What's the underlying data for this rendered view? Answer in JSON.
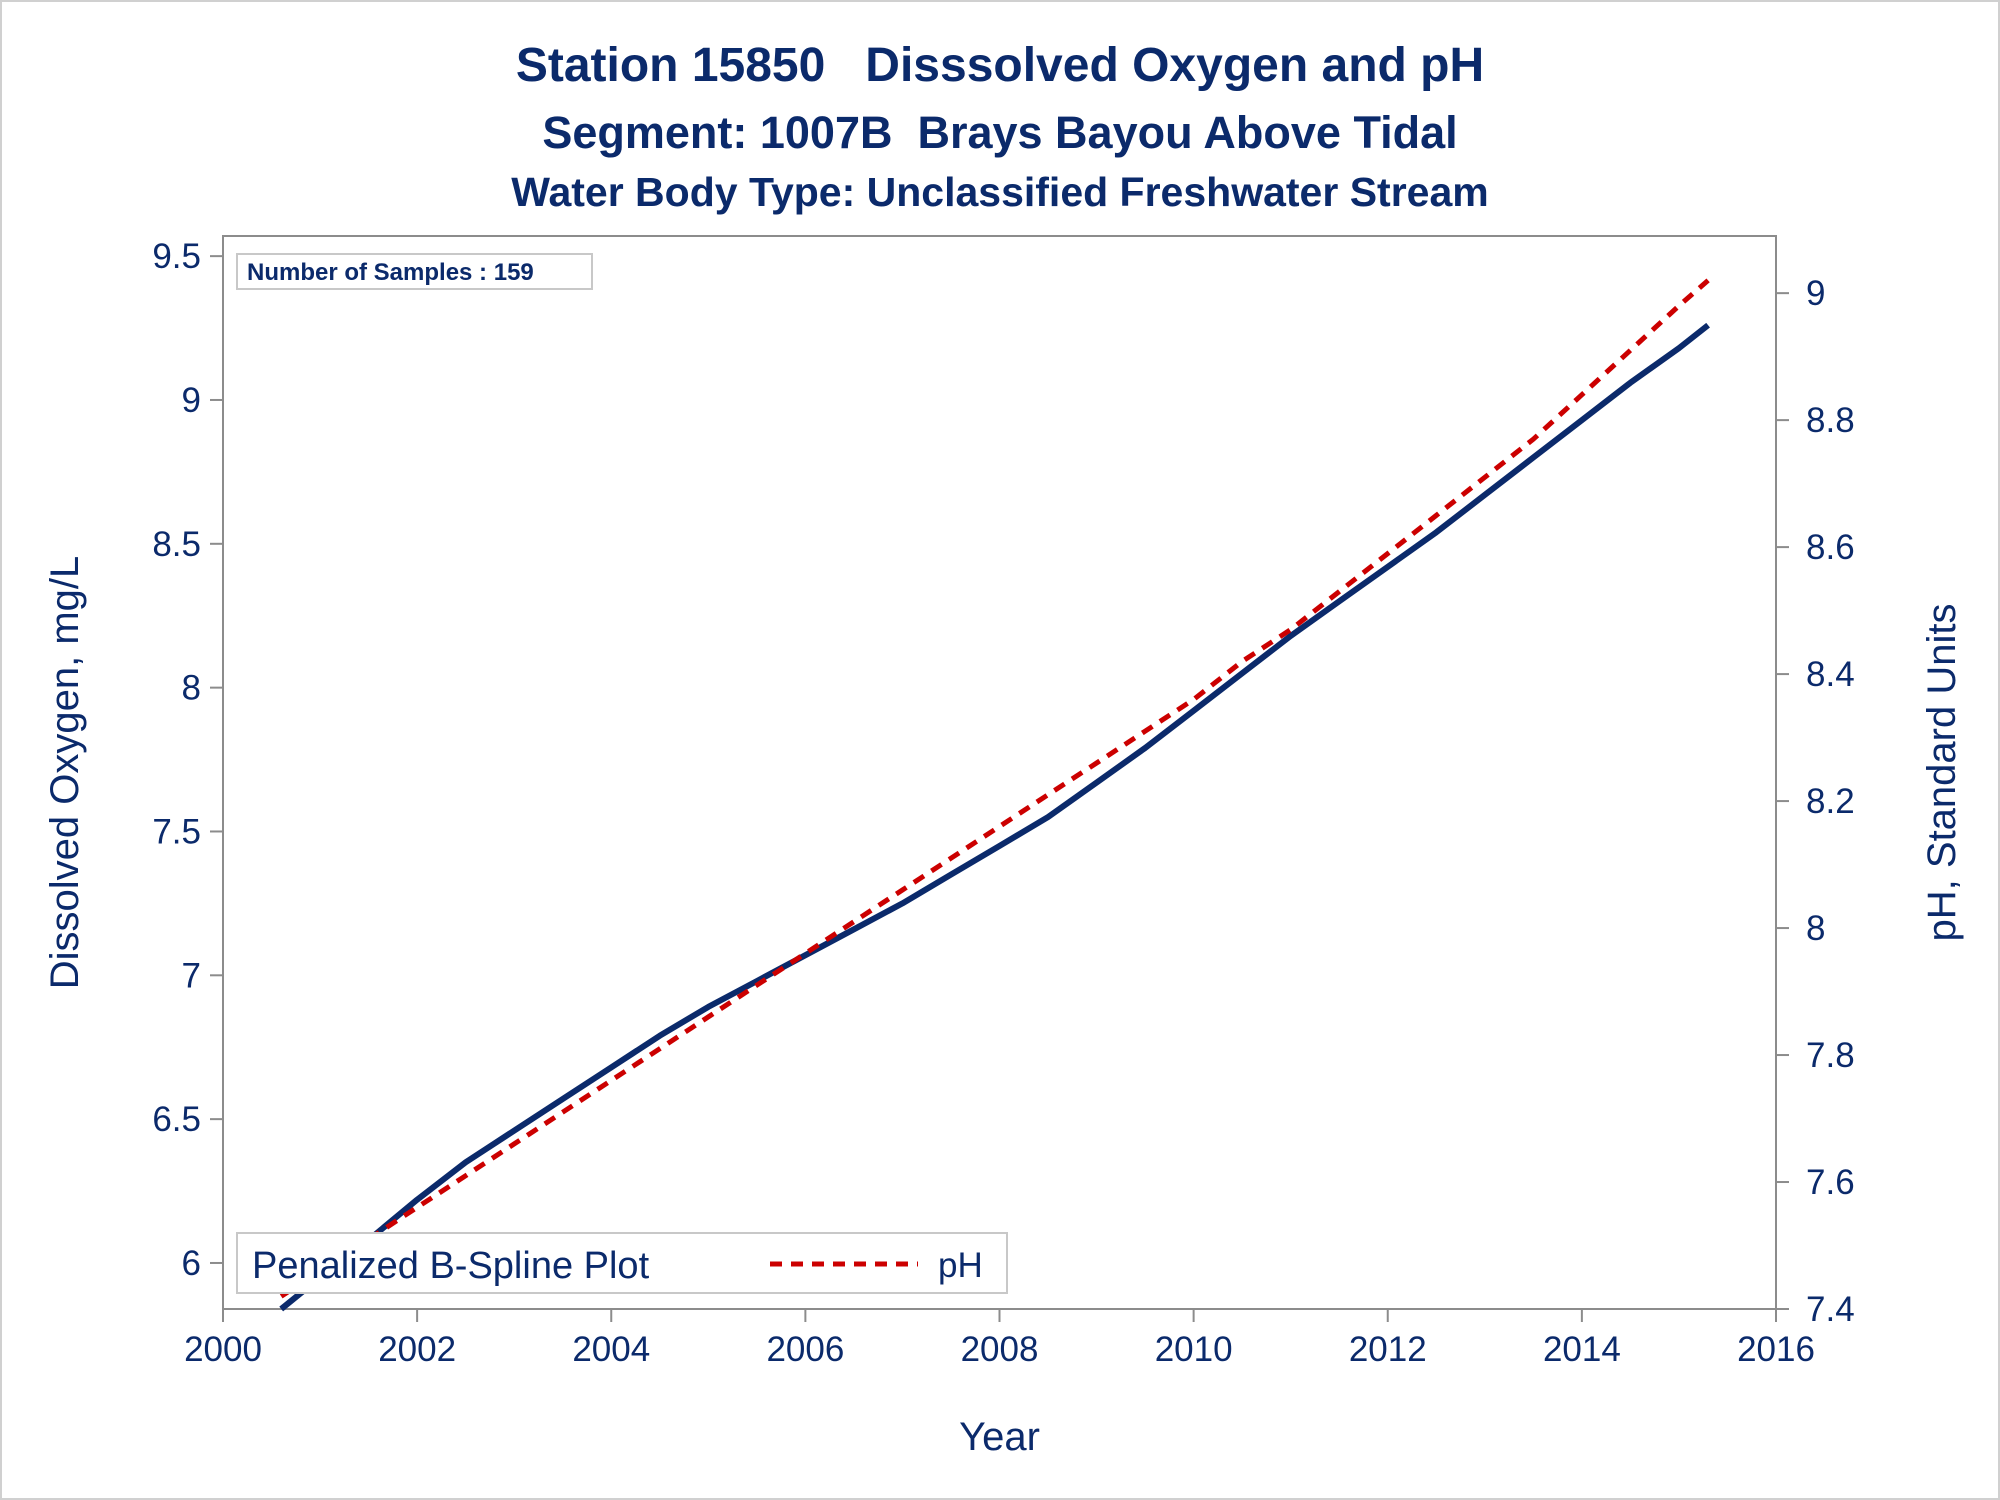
{
  "titles": {
    "line1": "Station 15850   Disssolved Oxygen and pH",
    "line2": "Segment: 1007B  Brays Bayou Above Tidal",
    "line3": "Water Body Type: Unclassified Freshwater Stream"
  },
  "inset_label": "Number of Samples : 159",
  "legend": {
    "label": "Penalized B-Spline Plot",
    "items": [
      "pH"
    ]
  },
  "colors": {
    "text": "#0b2a6b",
    "do_line": "#0b2a6b",
    "ph_line": "#cc0000",
    "axis": "#8c8c8c"
  },
  "chart_data": {
    "type": "line",
    "xlabel": "Year",
    "ylabel": "Dissolved Oxygen, mg/L",
    "y2label": "pH, Standard Units",
    "xlim": [
      2000,
      2016
    ],
    "ylim": [
      5.84,
      9.57
    ],
    "y2lim": [
      7.4,
      9.09
    ],
    "x_ticks": [
      2000,
      2002,
      2004,
      2006,
      2008,
      2010,
      2012,
      2014,
      2016
    ],
    "y_ticks": [
      6,
      6.5,
      7,
      7.5,
      8,
      8.5,
      9,
      9.5
    ],
    "y2_ticks": [
      7.4,
      7.6,
      7.8,
      8,
      8.2,
      8.4,
      8.6,
      8.8,
      9
    ],
    "grid": false,
    "legend_position": "bottom-left",
    "series": [
      {
        "axis": "left",
        "style": "solid",
        "x": [
          2000.6,
          2001.0,
          2001.5,
          2002.0,
          2002.5,
          2003.0,
          2003.5,
          2004.0,
          2004.5,
          2005.0,
          2005.5,
          2006.0,
          2006.5,
          2007.0,
          2007.5,
          2008.0,
          2008.5,
          2009.0,
          2009.5,
          2010.0,
          2010.5,
          2011.0,
          2011.5,
          2012.0,
          2012.5,
          2013.0,
          2013.5,
          2014.0,
          2014.5,
          2015.0,
          2015.3
        ],
        "values": [
          5.84,
          5.95,
          6.08,
          6.22,
          6.35,
          6.46,
          6.57,
          6.68,
          6.79,
          6.89,
          6.98,
          7.07,
          7.16,
          7.25,
          7.35,
          7.45,
          7.55,
          7.67,
          7.79,
          7.92,
          8.05,
          8.18,
          8.3,
          8.42,
          8.54,
          8.67,
          8.8,
          8.93,
          9.06,
          9.18,
          9.26
        ]
      },
      {
        "name": "pH",
        "axis": "right",
        "style": "dashed",
        "x": [
          2000.6,
          2001.0,
          2001.5,
          2002.0,
          2002.5,
          2003.0,
          2003.5,
          2004.0,
          2004.5,
          2005.0,
          2005.5,
          2006.0,
          2006.5,
          2007.0,
          2007.5,
          2008.0,
          2008.5,
          2009.0,
          2009.5,
          2010.0,
          2010.5,
          2011.0,
          2011.5,
          2012.0,
          2012.5,
          2013.0,
          2013.5,
          2014.0,
          2014.5,
          2015.0,
          2015.3
        ],
        "values": [
          7.42,
          7.46,
          7.51,
          7.56,
          7.61,
          7.66,
          7.71,
          7.76,
          7.81,
          7.86,
          7.91,
          7.96,
          8.01,
          8.06,
          8.11,
          8.16,
          8.21,
          8.26,
          8.31,
          8.36,
          8.42,
          8.47,
          8.53,
          8.59,
          8.65,
          8.71,
          8.77,
          8.84,
          8.91,
          8.98,
          9.02
        ]
      }
    ]
  }
}
